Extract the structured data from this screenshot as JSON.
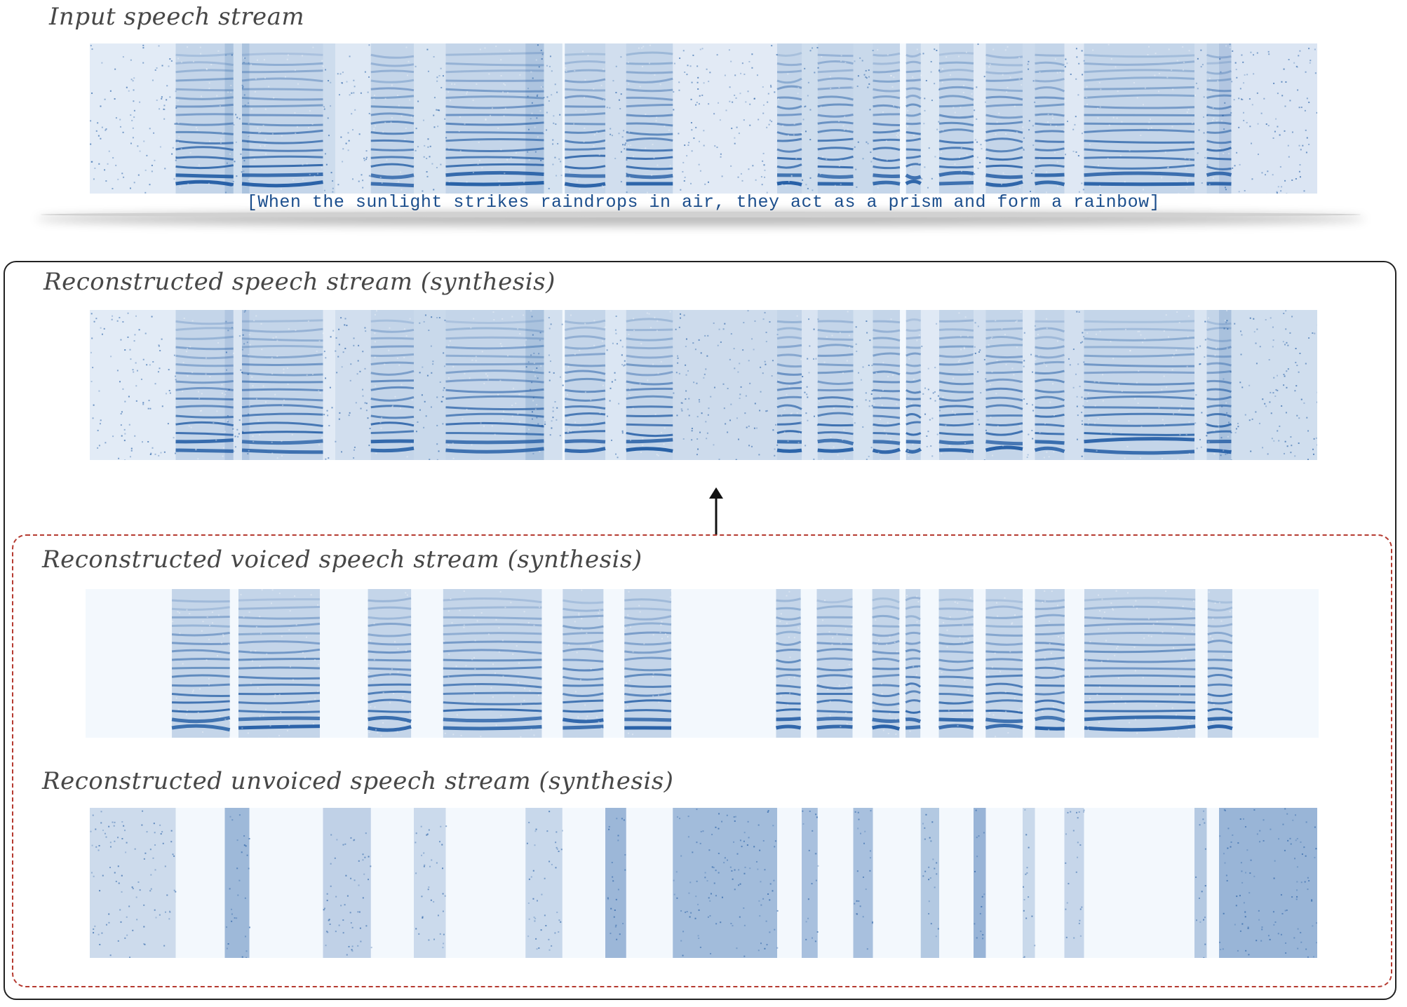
{
  "panels": {
    "input": {
      "title": "Input speech stream"
    },
    "transcript": "[When the sunlight strikes raindrops in air, they act as a prism and form a rainbow]",
    "reconstructed": {
      "title": "Reconstructed speech stream (synthesis)"
    },
    "voiced": {
      "title": "Reconstructed voiced speech stream (synthesis)"
    },
    "unvoiced": {
      "title": "Reconstructed unvoiced speech stream (synthesis)"
    }
  },
  "colors": {
    "spectrogram": "#1f5aa3",
    "spectrogram_background": "#f3f8fd",
    "dashed_frame": "#b53a30",
    "label_text": "#474747",
    "transcript_text": "#1c4f8e"
  }
}
